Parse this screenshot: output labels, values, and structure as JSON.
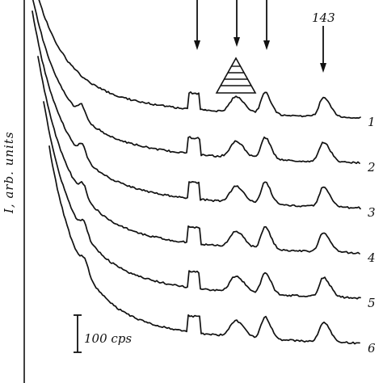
{
  "chart_data": {
    "type": "line",
    "ylabel": "I, arb. units",
    "xlabel": "",
    "scale_bar_label": "100 cps",
    "peak_label": "143",
    "series": [
      {
        "name": "1",
        "offset": 0
      },
      {
        "name": "2",
        "offset": 1
      },
      {
        "name": "3",
        "offset": 2
      },
      {
        "name": "4",
        "offset": 3
      },
      {
        "name": "5",
        "offset": 4
      },
      {
        "name": "6",
        "offset": 5
      }
    ],
    "peaks": [
      {
        "id": "rect",
        "shape": "rectangular"
      },
      {
        "id": "p2",
        "shape": "triangular"
      },
      {
        "id": "p3",
        "shape": "peak"
      },
      {
        "id": "p143",
        "shape": "peak",
        "label": "143"
      }
    ]
  }
}
